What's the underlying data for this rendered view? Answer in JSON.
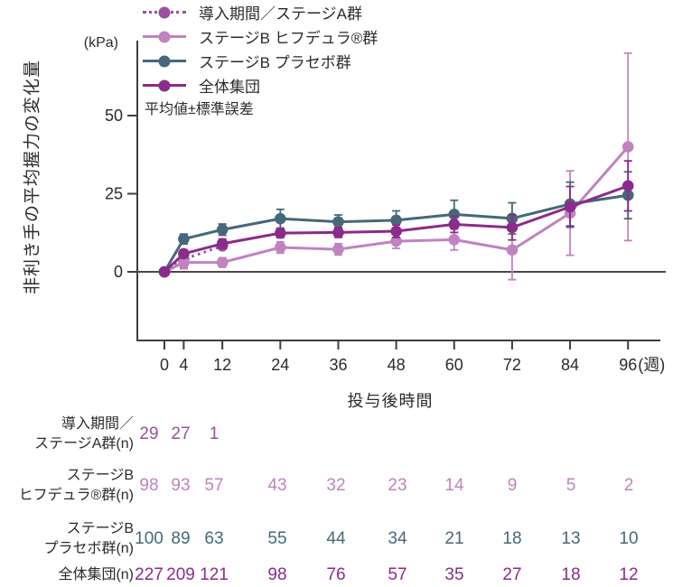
{
  "figure": {
    "y_axis_label": "非利き手の平均握力の変化量",
    "x_axis_label": "投与後時間",
    "note": "平均値±標準誤差"
  },
  "colors": {
    "stage_a": "#9d4f9d",
    "hifdura": "#c083c0",
    "placebo": "#45687a",
    "overall": "#8b2b8b",
    "axis": "#3f3f3f",
    "text": "#2b2b2b"
  },
  "chart_data": {
    "type": "line",
    "title": "",
    "ylabel": "非利き手の平均握力の変化量",
    "y_unit": "(kPa)",
    "xlabel": "投与後時間",
    "x_unit": "(週)",
    "note": "平均値±標準誤差",
    "x_ticks": [
      0,
      4,
      12,
      24,
      36,
      48,
      60,
      72,
      84,
      96
    ],
    "y_ticks": [
      0,
      25,
      50
    ],
    "ylim": [
      -22,
      73
    ],
    "grid": false,
    "legend_position": "top-left",
    "error_bars": "standard error",
    "series": [
      {
        "name": "導入期間／ステージA群",
        "style": "dotted",
        "color": "#9d4f9d",
        "x": [
          0,
          4,
          12
        ],
        "values": [
          0,
          4,
          8.3
        ],
        "se": [
          0.3,
          2.5,
          0
        ]
      },
      {
        "name": "ステージB ヒフデュラ®群",
        "style": "solid",
        "color": "#c083c0",
        "x": [
          0,
          4,
          12,
          24,
          36,
          48,
          60,
          72,
          84,
          96
        ],
        "values": [
          0,
          3,
          3,
          7.8,
          7.2,
          9.8,
          10.3,
          7,
          18.8,
          40
        ],
        "se": [
          0.3,
          2,
          1.5,
          1.8,
          1.8,
          2.3,
          3.3,
          9.5,
          13.5,
          30
        ]
      },
      {
        "name": "ステージB プラセボ群",
        "style": "solid",
        "color": "#45687a",
        "x": [
          0,
          4,
          12,
          24,
          36,
          48,
          60,
          72,
          84,
          96
        ],
        "values": [
          0,
          10.5,
          13.5,
          17,
          16,
          16.5,
          18.4,
          17.1,
          21.7,
          24.5
        ],
        "se": [
          0.3,
          1.6,
          1.8,
          3,
          2.2,
          3,
          4.5,
          5,
          7,
          7.5
        ]
      },
      {
        "name": "全体集団",
        "style": "solid",
        "color": "#8b2b8b",
        "x": [
          0,
          4,
          12,
          24,
          36,
          48,
          60,
          72,
          84,
          96
        ],
        "values": [
          0,
          5.8,
          9,
          12.4,
          12.6,
          13,
          15.2,
          14.2,
          20.8,
          27.5
        ],
        "se": [
          0.2,
          1.2,
          1.5,
          1.5,
          1.6,
          2,
          2.6,
          4,
          6.5,
          8
        ]
      }
    ]
  },
  "n_table": {
    "rows": [
      {
        "label_lines": [
          "導入期間／",
          "ステージA群(n)"
        ],
        "color": "#9d4f9d",
        "values": [
          "29",
          "27",
          "1"
        ]
      },
      {
        "label_lines": [
          "ステージB",
          "ヒフデュラ®群(n)"
        ],
        "color": "#c083c0",
        "values": [
          "98",
          "93",
          "57",
          "43",
          "32",
          "23",
          "14",
          "9",
          "5",
          "2"
        ]
      },
      {
        "label_lines": [
          "ステージB",
          "プラセボ群(n)"
        ],
        "color": "#45687a",
        "values": [
          "100",
          "89",
          "63",
          "55",
          "44",
          "34",
          "21",
          "18",
          "13",
          "10"
        ]
      },
      {
        "label_lines": [
          "全体集団(n)"
        ],
        "color": "#8b2b8b",
        "values": [
          "227",
          "209",
          "121",
          "98",
          "76",
          "57",
          "35",
          "27",
          "18",
          "12"
        ]
      }
    ]
  }
}
